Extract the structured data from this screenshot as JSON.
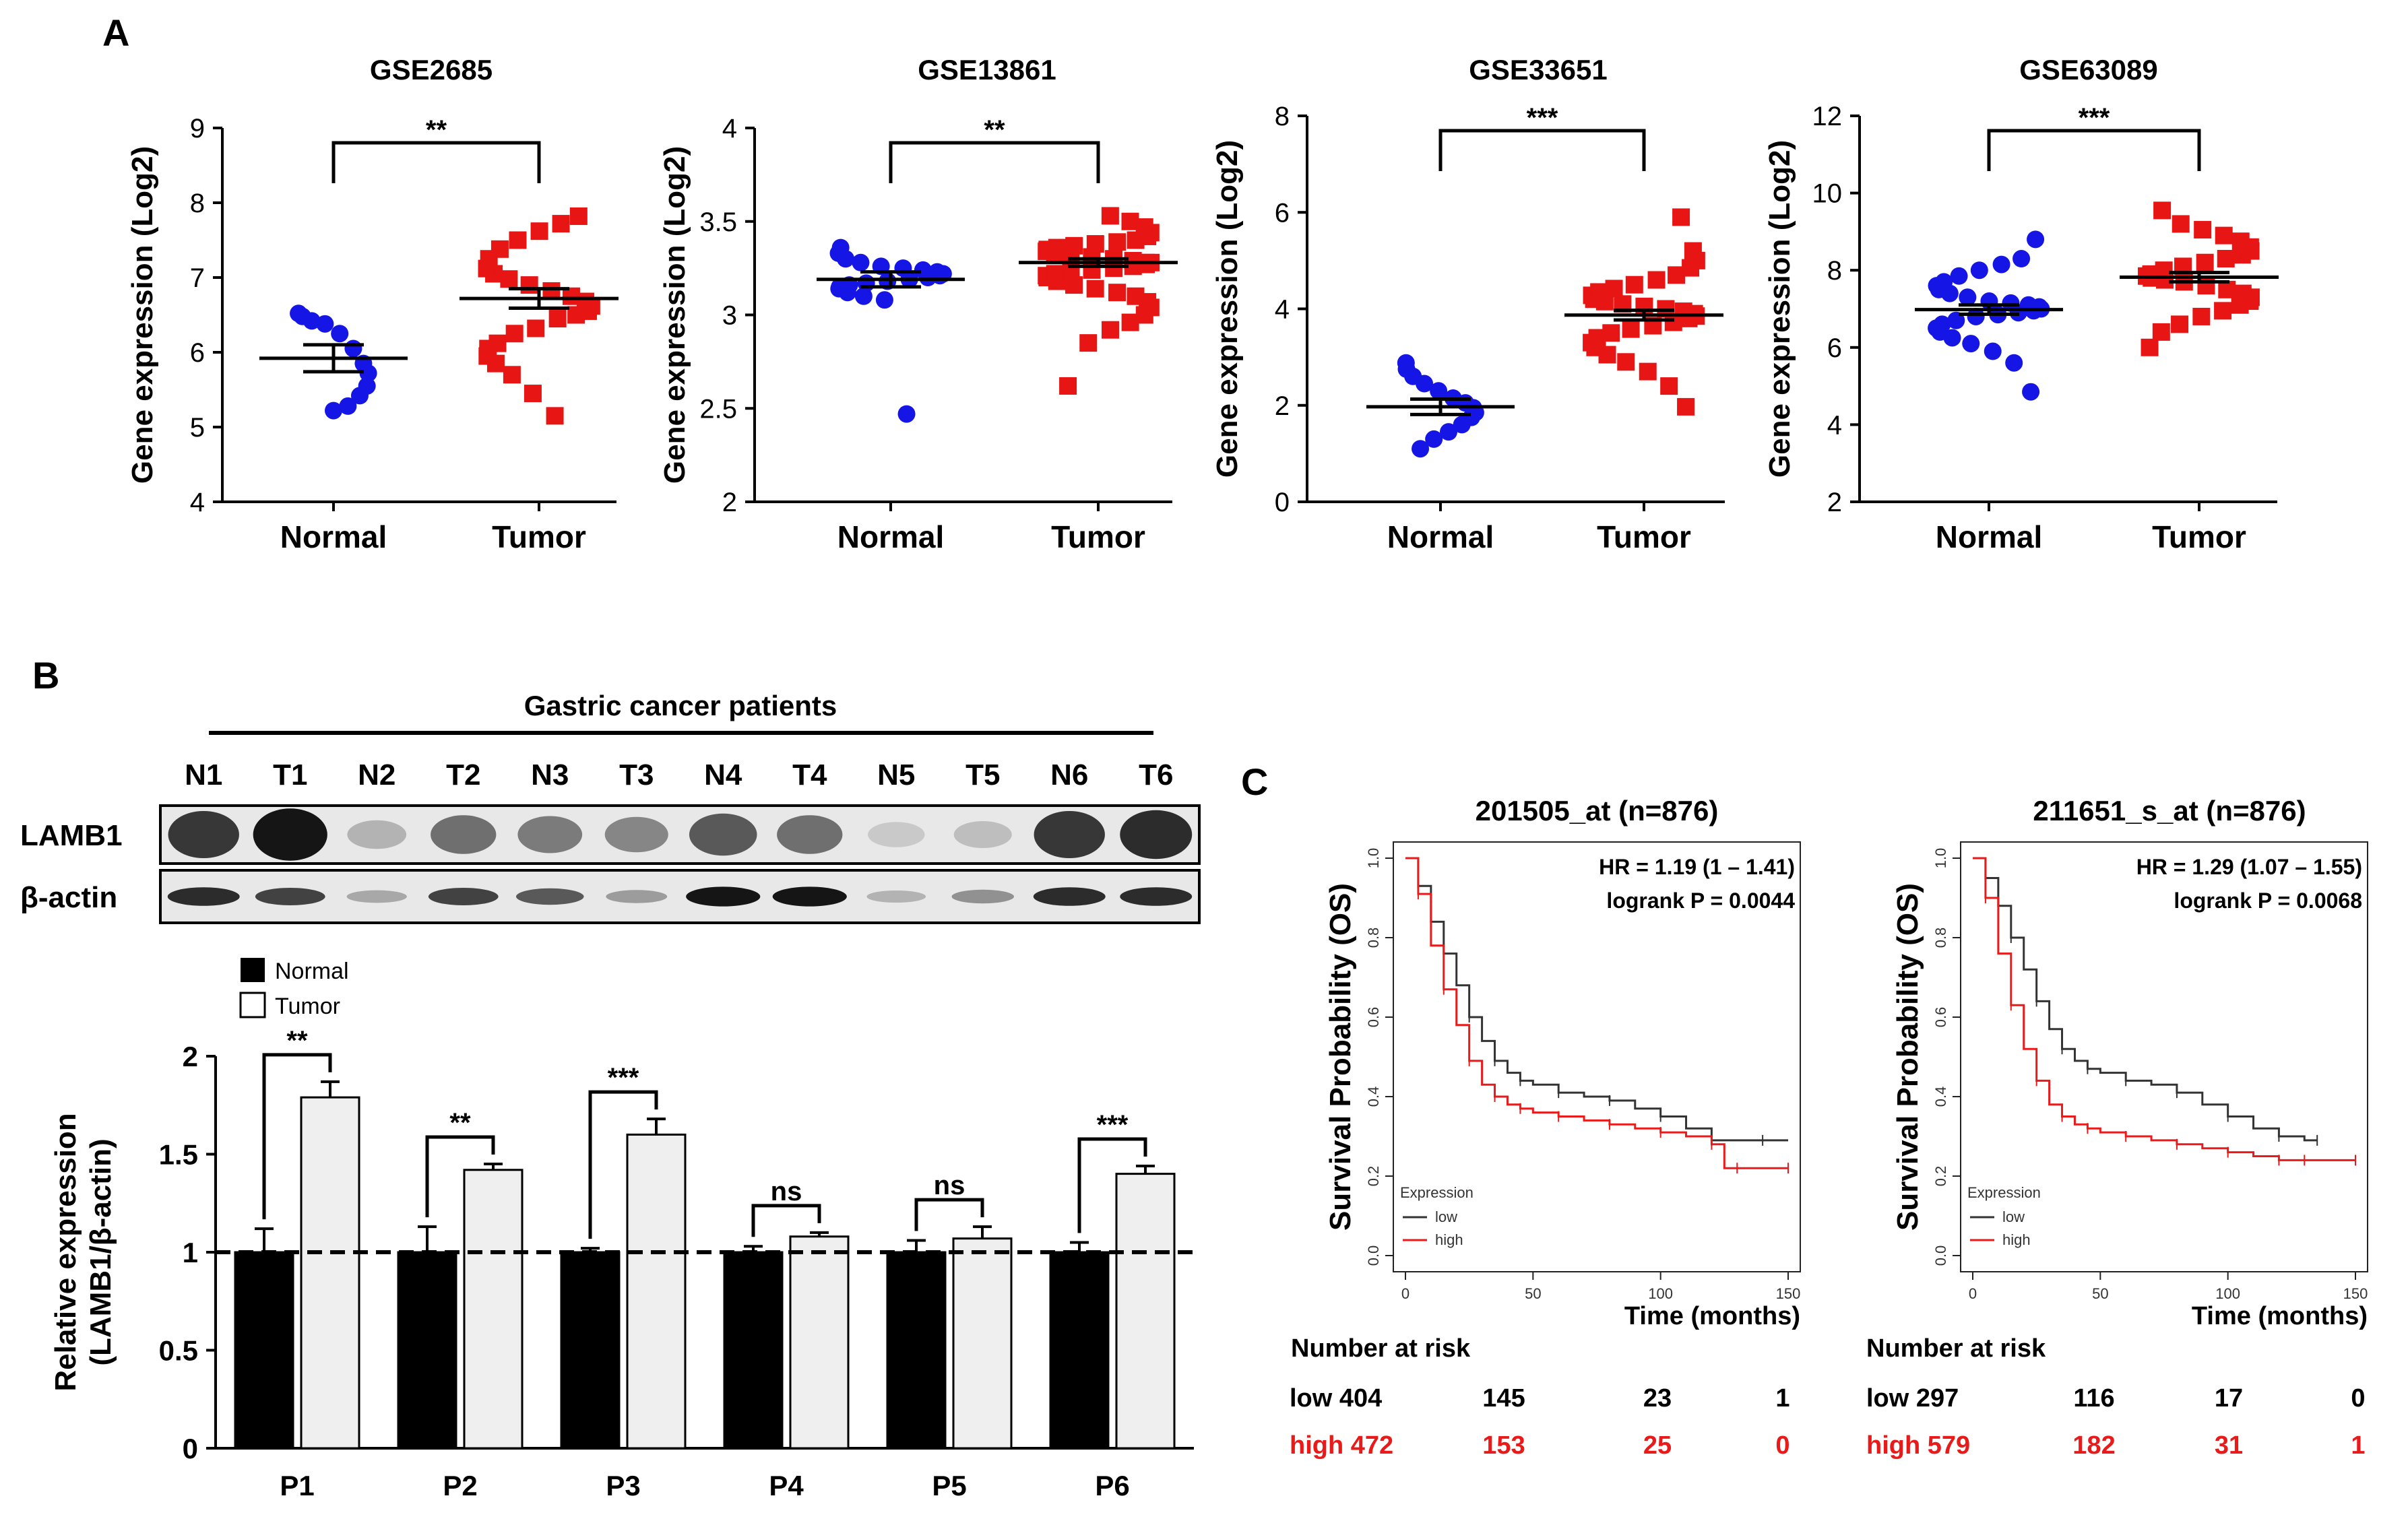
{
  "panel_labels": {
    "a": "A",
    "b": "B",
    "c": "C"
  },
  "colors": {
    "normal": "#1515e6",
    "tumor": "#e81515",
    "black": "#000000",
    "bar_normal": "#000000",
    "bar_tumor": "#efefef",
    "km_low": "#333333",
    "km_high": "#e81a1a"
  },
  "chart_data": [
    {
      "type": "scatter",
      "panel": "A",
      "title": "GSE2685",
      "xlabel": "",
      "ylabel": "Gene expression (Log2)",
      "categories": [
        "Normal",
        "Tumor"
      ],
      "ylim": [
        4,
        9
      ],
      "yticks": [
        "4",
        "5",
        "6",
        "7",
        "8",
        "9"
      ],
      "means": [
        5.92,
        6.72
      ],
      "sem": [
        0.18,
        0.13
      ],
      "significance": "**",
      "series": [
        {
          "name": "Normal",
          "marker": "circle",
          "values": [
            5.22,
            5.28,
            5.42,
            5.55,
            5.72,
            5.85,
            6.05,
            6.25,
            6.38,
            6.42,
            6.48,
            6.52
          ]
        },
        {
          "name": "Tumor",
          "marker": "square",
          "values": [
            5.15,
            5.45,
            5.7,
            5.85,
            5.95,
            6.05,
            6.12,
            6.25,
            6.32,
            6.45,
            6.5,
            6.55,
            6.62,
            6.68,
            6.75,
            6.82,
            6.9,
            6.98,
            7.05,
            7.12,
            7.25,
            7.38,
            7.5,
            7.62,
            7.72,
            7.82
          ]
        }
      ]
    },
    {
      "type": "scatter",
      "panel": "A",
      "title": "GSE13861",
      "xlabel": "",
      "ylabel": "Gene expression (Log2)",
      "categories": [
        "Normal",
        "Tumor"
      ],
      "ylim": [
        2,
        4
      ],
      "yticks": [
        "2",
        "2.5",
        "3",
        "3.5",
        "4"
      ],
      "means": [
        3.19,
        3.28
      ],
      "sem": [
        0.04,
        0.02
      ],
      "significance": "**",
      "series": [
        {
          "name": "Normal",
          "marker": "circle",
          "values": [
            2.47,
            3.08,
            3.1,
            3.12,
            3.14,
            3.15,
            3.16,
            3.17,
            3.18,
            3.19,
            3.2,
            3.21,
            3.22,
            3.23,
            3.24,
            3.25,
            3.26,
            3.28,
            3.3,
            3.33,
            3.36
          ]
        },
        {
          "name": "Tumor",
          "marker": "square",
          "values": [
            2.62,
            2.85,
            2.92,
            2.96,
            3.0,
            3.04,
            3.07,
            3.1,
            3.12,
            3.14,
            3.16,
            3.18,
            3.2,
            3.21,
            3.22,
            3.23,
            3.24,
            3.25,
            3.26,
            3.27,
            3.28,
            3.28,
            3.29,
            3.3,
            3.31,
            3.32,
            3.33,
            3.34,
            3.35,
            3.36,
            3.37,
            3.38,
            3.39,
            3.4,
            3.42,
            3.44,
            3.47,
            3.5,
            3.53
          ]
        }
      ]
    },
    {
      "type": "scatter",
      "panel": "A",
      "title": "GSE33651",
      "xlabel": "",
      "ylabel": "Gene expression (Log2)",
      "categories": [
        "Normal",
        "Tumor"
      ],
      "ylim": [
        0,
        8
      ],
      "yticks": [
        "0",
        "2",
        "4",
        "6",
        "8"
      ],
      "means": [
        1.97,
        3.87
      ],
      "sem": [
        0.16,
        0.1
      ],
      "significance": "***",
      "series": [
        {
          "name": "Normal",
          "marker": "circle",
          "values": [
            1.1,
            1.3,
            1.45,
            1.6,
            1.75,
            1.85,
            1.95,
            2.05,
            2.15,
            2.3,
            2.45,
            2.6,
            2.75,
            2.88
          ]
        },
        {
          "name": "Tumor",
          "marker": "square",
          "values": [
            1.97,
            2.4,
            2.7,
            2.9,
            3.05,
            3.2,
            3.3,
            3.4,
            3.5,
            3.58,
            3.65,
            3.72,
            3.8,
            3.85,
            3.9,
            3.95,
            4.0,
            4.05,
            4.1,
            4.15,
            4.2,
            4.28,
            4.35,
            4.42,
            4.5,
            4.6,
            4.7,
            4.85,
            5.0,
            5.2,
            5.9
          ]
        }
      ]
    },
    {
      "type": "scatter",
      "panel": "A",
      "title": "GSE63089",
      "xlabel": "",
      "ylabel": "Gene expression (Log2)",
      "categories": [
        "Normal",
        "Tumor"
      ],
      "ylim": [
        2,
        12
      ],
      "yticks": [
        "2",
        "4",
        "6",
        "8",
        "10",
        "12"
      ],
      "means": [
        6.98,
        7.82
      ],
      "sem": [
        0.12,
        0.12
      ],
      "significance": "***",
      "series": [
        {
          "name": "Normal",
          "marker": "circle",
          "values": [
            4.85,
            5.6,
            5.9,
            6.1,
            6.25,
            6.4,
            6.5,
            6.6,
            6.7,
            6.8,
            6.85,
            6.9,
            6.95,
            7.0,
            7.05,
            7.1,
            7.15,
            7.2,
            7.3,
            7.4,
            7.5,
            7.6,
            7.7,
            7.85,
            8.0,
            8.15,
            8.3,
            8.8
          ]
        },
        {
          "name": "Tumor",
          "marker": "square",
          "values": [
            6.0,
            6.4,
            6.6,
            6.8,
            6.95,
            7.1,
            7.2,
            7.3,
            7.4,
            7.5,
            7.6,
            7.7,
            7.75,
            7.8,
            7.85,
            7.9,
            8.0,
            8.1,
            8.2,
            8.3,
            8.4,
            8.5,
            8.6,
            8.75,
            8.9,
            9.05,
            9.2,
            9.55
          ]
        }
      ]
    },
    {
      "type": "bar",
      "panel": "B",
      "title": "",
      "xlabel": "",
      "ylabel": "Relative expression (LAMB1/β-actin)",
      "ylabel_line1": "Relative expression",
      "ylabel_line2": "(LAMB1/β-actin)",
      "categories": [
        "P1",
        "P2",
        "P3",
        "P4",
        "P5",
        "P6"
      ],
      "ylim": [
        0,
        2
      ],
      "yticks": [
        "0",
        "0.5",
        "1",
        "1.5",
        "2"
      ],
      "reference_line": 1,
      "legend": [
        "Normal",
        "Tumor"
      ],
      "series": [
        {
          "name": "Normal",
          "values": [
            1.0,
            1.0,
            1.0,
            1.0,
            1.0,
            1.0
          ],
          "errors": [
            0.12,
            0.13,
            0.02,
            0.03,
            0.06,
            0.05
          ]
        },
        {
          "name": "Tumor",
          "values": [
            1.79,
            1.42,
            1.6,
            1.08,
            1.07,
            1.4
          ],
          "errors": [
            0.08,
            0.03,
            0.08,
            0.02,
            0.06,
            0.04
          ]
        }
      ],
      "significance": [
        "**",
        "**",
        "***",
        "ns",
        "ns",
        "***"
      ]
    },
    {
      "type": "line",
      "panel": "C",
      "title": "201505_at (n=876)",
      "xlabel": "Time (months)",
      "ylabel": "Survival Probability (OS)",
      "xlim": [
        0,
        150
      ],
      "ylim": [
        0,
        1
      ],
      "xticks": [
        "0",
        "50",
        "100",
        "150"
      ],
      "yticks": [
        "0.0",
        "0.2",
        "0.4",
        "0.6",
        "0.8",
        "1.0"
      ],
      "annotation_hr": "HR = 1.19 (1 – 1.41)",
      "annotation_p": "logrank P = 0.0044",
      "legend_title": "Expression",
      "series": [
        {
          "name": "low",
          "x": [
            0,
            5,
            10,
            15,
            20,
            25,
            30,
            35,
            40,
            45,
            50,
            60,
            70,
            80,
            90,
            100,
            110,
            120,
            130,
            140,
            150
          ],
          "values": [
            1.0,
            0.93,
            0.84,
            0.76,
            0.68,
            0.6,
            0.54,
            0.49,
            0.46,
            0.44,
            0.43,
            0.41,
            0.4,
            0.39,
            0.37,
            0.35,
            0.32,
            0.29,
            0.29,
            0.29,
            0.29
          ]
        },
        {
          "name": "high",
          "x": [
            0,
            5,
            10,
            15,
            20,
            25,
            30,
            35,
            40,
            45,
            50,
            60,
            70,
            80,
            90,
            100,
            110,
            120,
            125,
            130,
            140,
            150
          ],
          "values": [
            1.0,
            0.91,
            0.78,
            0.67,
            0.58,
            0.49,
            0.43,
            0.4,
            0.38,
            0.37,
            0.36,
            0.35,
            0.34,
            0.33,
            0.32,
            0.31,
            0.3,
            0.28,
            0.22,
            0.22,
            0.22,
            0.22
          ]
        }
      ],
      "risk_table": {
        "header": "Number at risk",
        "rows": [
          {
            "label": "low 404",
            "counts": [
              "145",
              "23",
              "1"
            ]
          },
          {
            "label": "high 472",
            "counts": [
              "153",
              "25",
              "0"
            ]
          }
        ]
      }
    },
    {
      "type": "line",
      "panel": "C",
      "title": "211651_s_at (n=876)",
      "xlabel": "Time (months)",
      "ylabel": "Survival Probability (OS)",
      "xlim": [
        0,
        150
      ],
      "ylim": [
        0,
        1
      ],
      "xticks": [
        "0",
        "50",
        "100",
        "150"
      ],
      "yticks": [
        "0.0",
        "0.2",
        "0.4",
        "0.6",
        "0.8",
        "1.0"
      ],
      "annotation_hr": "HR = 1.29 (1.07 – 1.55)",
      "annotation_p": "logrank P = 0.0068",
      "legend_title": "Expression",
      "series": [
        {
          "name": "low",
          "x": [
            0,
            5,
            10,
            15,
            20,
            25,
            30,
            35,
            40,
            45,
            50,
            60,
            70,
            80,
            90,
            100,
            110,
            120,
            130,
            135
          ],
          "values": [
            1.0,
            0.95,
            0.88,
            0.8,
            0.72,
            0.64,
            0.57,
            0.52,
            0.49,
            0.47,
            0.46,
            0.44,
            0.43,
            0.41,
            0.38,
            0.35,
            0.32,
            0.3,
            0.29,
            0.29
          ]
        },
        {
          "name": "high",
          "x": [
            0,
            5,
            10,
            15,
            20,
            25,
            30,
            35,
            40,
            45,
            50,
            60,
            70,
            80,
            90,
            100,
            110,
            120,
            125,
            130,
            140,
            150
          ],
          "values": [
            1.0,
            0.9,
            0.76,
            0.63,
            0.52,
            0.44,
            0.38,
            0.35,
            0.33,
            0.32,
            0.31,
            0.3,
            0.29,
            0.28,
            0.27,
            0.26,
            0.25,
            0.24,
            0.24,
            0.24,
            0.24,
            0.24
          ]
        }
      ],
      "risk_table": {
        "header": "Number at risk",
        "rows": [
          {
            "label": "low 297",
            "counts": [
              "116",
              "17",
              "0"
            ]
          },
          {
            "label": "high 579",
            "counts": [
              "182",
              "31",
              "1"
            ]
          }
        ]
      }
    }
  ],
  "western_blot": {
    "title": "Gastric cancer patients",
    "lanes": [
      "N1",
      "T1",
      "N2",
      "T2",
      "N3",
      "T3",
      "N4",
      "T4",
      "N5",
      "T5",
      "N6",
      "T6"
    ],
    "rows": [
      {
        "label": "LAMB1",
        "intensity": [
          0.8,
          0.95,
          0.25,
          0.55,
          0.5,
          0.45,
          0.65,
          0.55,
          0.15,
          0.2,
          0.8,
          0.85
        ]
      },
      {
        "label": "β-actin",
        "intensity": [
          0.85,
          0.75,
          0.3,
          0.75,
          0.65,
          0.35,
          0.95,
          0.95,
          0.25,
          0.4,
          0.85,
          0.85
        ]
      }
    ]
  }
}
